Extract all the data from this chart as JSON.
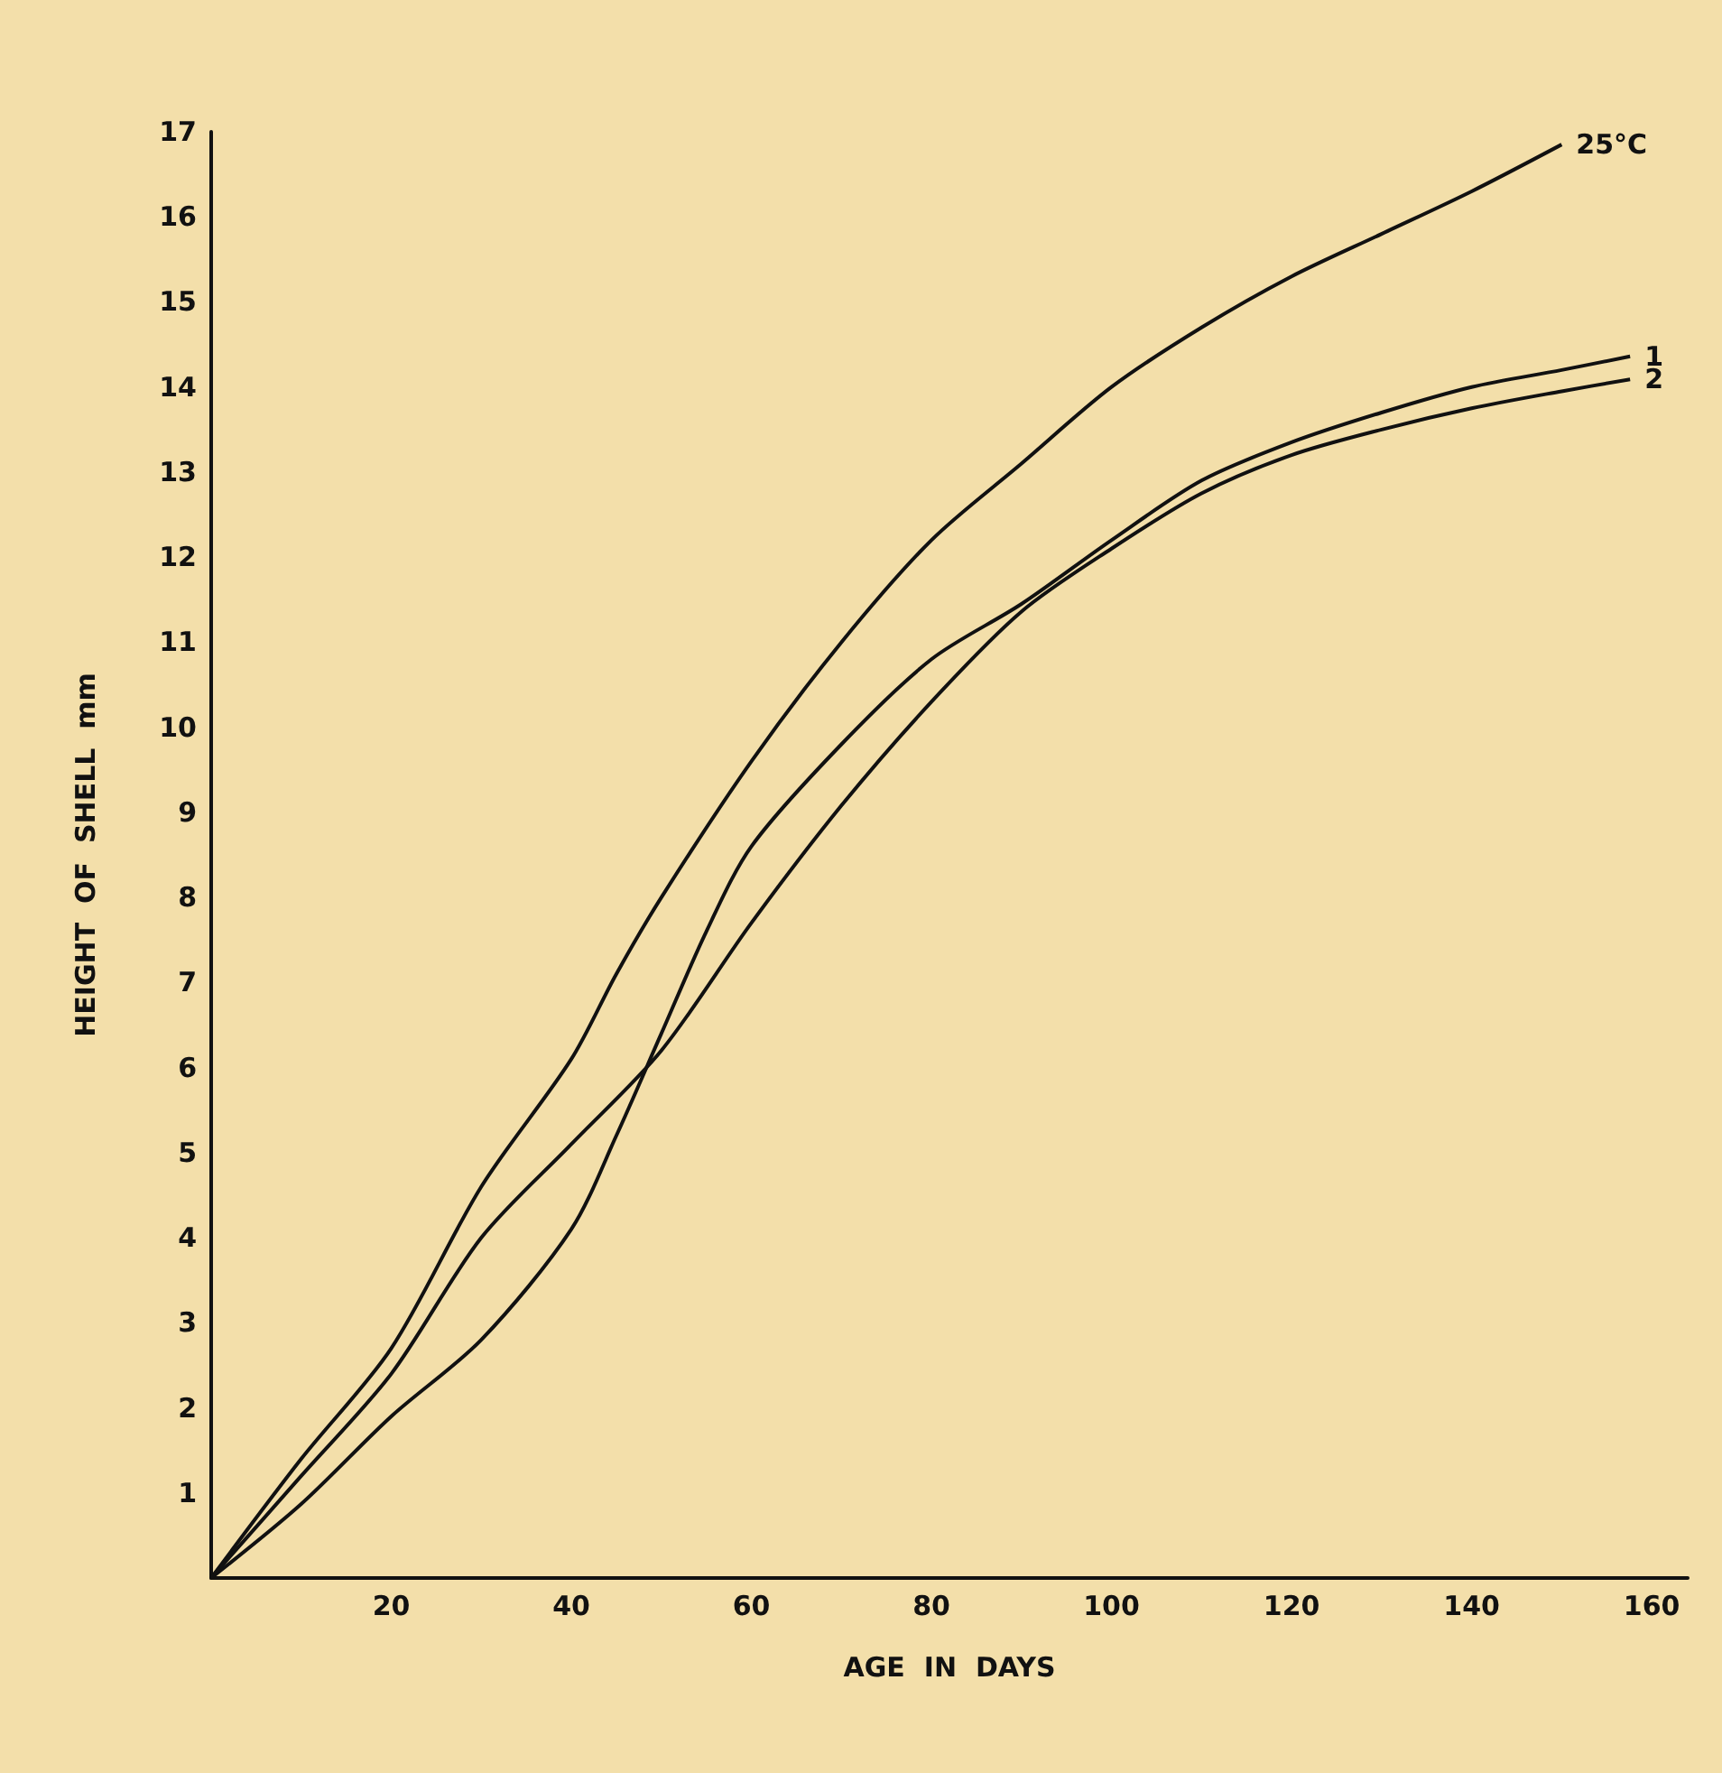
{
  "chart_data": {
    "type": "line",
    "xlabel": "AGE  IN  DAYS",
    "ylabel": "HEIGHT  OF  SHELL  mm",
    "xlim": [
      0,
      164
    ],
    "ylim": [
      0,
      17
    ],
    "xticks": [
      20,
      40,
      60,
      80,
      100,
      120,
      140,
      160
    ],
    "yticks": [
      1,
      2,
      3,
      4,
      5,
      6,
      7,
      8,
      9,
      10,
      11,
      12,
      13,
      14,
      15,
      16,
      17
    ],
    "legend": false,
    "marker": "none",
    "line_style": "solid",
    "series": [
      {
        "name": "25°C",
        "color": "#111111",
        "x": [
          0,
          10,
          20,
          30,
          40,
          45,
          50,
          60,
          70,
          80,
          90,
          100,
          110,
          120,
          130,
          140,
          150
        ],
        "values": [
          0,
          1.4,
          2.7,
          4.6,
          6.1,
          7.1,
          8.0,
          9.6,
          11.0,
          12.2,
          13.1,
          14.0,
          14.7,
          15.3,
          15.8,
          16.3,
          16.85
        ]
      },
      {
        "name": "1",
        "color": "#111111",
        "x": [
          0,
          10,
          20,
          30,
          40,
          45,
          50,
          55,
          60,
          70,
          80,
          90,
          100,
          110,
          120,
          130,
          140,
          150,
          157.6
        ],
        "values": [
          0,
          0.87,
          1.9,
          2.8,
          4.1,
          5.2,
          6.4,
          7.6,
          8.6,
          9.8,
          10.8,
          11.45,
          12.2,
          12.9,
          13.35,
          13.7,
          14.0,
          14.2,
          14.36
        ]
      },
      {
        "name": "2",
        "color": "#111111",
        "x": [
          0,
          10,
          20,
          30,
          40,
          50,
          60,
          70,
          80,
          90,
          100,
          110,
          120,
          130,
          140,
          150,
          157.6
        ],
        "values": [
          0,
          1.2,
          2.4,
          4.0,
          5.1,
          6.2,
          7.7,
          9.08,
          10.3,
          11.36,
          12.1,
          12.75,
          13.2,
          13.5,
          13.75,
          13.95,
          14.09
        ]
      }
    ]
  }
}
